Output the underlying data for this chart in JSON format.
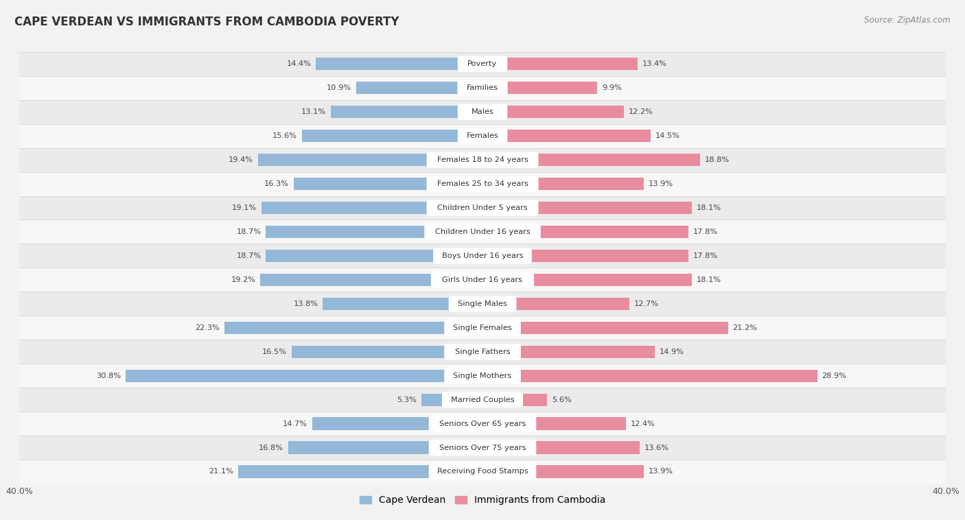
{
  "title": "CAPE VERDEAN VS IMMIGRANTS FROM CAMBODIA POVERTY",
  "source": "Source: ZipAtlas.com",
  "categories": [
    "Poverty",
    "Families",
    "Males",
    "Females",
    "Females 18 to 24 years",
    "Females 25 to 34 years",
    "Children Under 5 years",
    "Children Under 16 years",
    "Boys Under 16 years",
    "Girls Under 16 years",
    "Single Males",
    "Single Females",
    "Single Fathers",
    "Single Mothers",
    "Married Couples",
    "Seniors Over 65 years",
    "Seniors Over 75 years",
    "Receiving Food Stamps"
  ],
  "cape_verdean": [
    14.4,
    10.9,
    13.1,
    15.6,
    19.4,
    16.3,
    19.1,
    18.7,
    18.7,
    19.2,
    13.8,
    22.3,
    16.5,
    30.8,
    5.3,
    14.7,
    16.8,
    21.1
  ],
  "cambodia": [
    13.4,
    9.9,
    12.2,
    14.5,
    18.8,
    13.9,
    18.1,
    17.8,
    17.8,
    18.1,
    12.7,
    21.2,
    14.9,
    28.9,
    5.6,
    12.4,
    13.6,
    13.9
  ],
  "cape_verdean_color": "#93b8d8",
  "cambodia_color": "#e88ca0",
  "row_bg_even": "#ebebeb",
  "row_bg_odd": "#f7f7f7",
  "background_color": "#f2f2f2",
  "axis_limit": 40.0,
  "legend_labels": [
    "Cape Verdean",
    "Immigrants from Cambodia"
  ]
}
